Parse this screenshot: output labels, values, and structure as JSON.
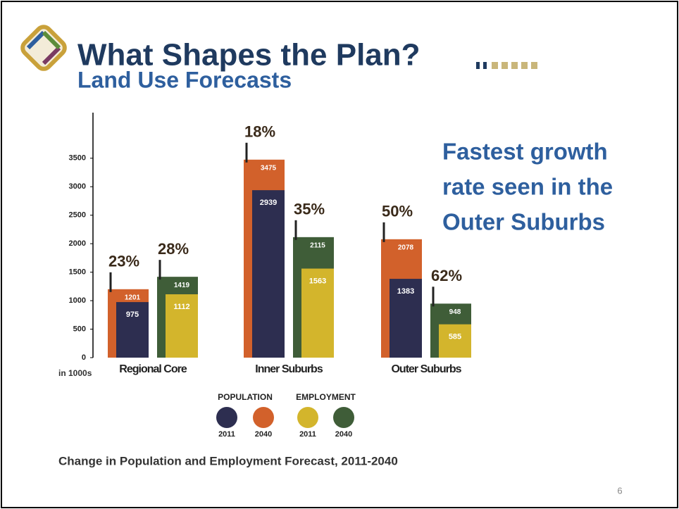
{
  "chart_data": {
    "type": "overlap-bar",
    "title": "What Shapes the Plan?",
    "subtitle": "Land Use Forecasts",
    "annotation": [
      "Fastest growth",
      "rate seen in the",
      "Outer Suburbs"
    ],
    "caption": "Change in Population and Employment Forecast, 2011-2040",
    "y_unit_label": "in 1000s",
    "page_number": 6,
    "categories": [
      "Regional Core",
      "Inner Suburbs",
      "Outer Suburbs"
    ],
    "groups": [
      {
        "name": "Population",
        "series": [
          {
            "name": "2011",
            "color": "#2d2e50",
            "values": [
              975,
              2939,
              1383
            ]
          },
          {
            "name": "2040",
            "color": "#d2612b",
            "values": [
              1201,
              3475,
              2078
            ]
          }
        ],
        "growth": [
          23,
          18,
          50
        ],
        "growth_labels": [
          "23%",
          "18%",
          "50%"
        ]
      },
      {
        "name": "Employment",
        "series": [
          {
            "name": "2011",
            "color": "#d3b52c",
            "values": [
              1112,
              1563,
              585
            ]
          },
          {
            "name": "2040",
            "color": "#3f5d38",
            "values": [
              1419,
              2115,
              948
            ]
          }
        ],
        "growth": [
          28,
          35,
          62
        ],
        "growth_labels": [
          "28%",
          "35%",
          "62%"
        ]
      }
    ],
    "ylim": [
      0,
      4300
    ],
    "yticks": [
      0,
      500,
      1000,
      1500,
      2000,
      2500,
      3000,
      3500
    ]
  }
}
